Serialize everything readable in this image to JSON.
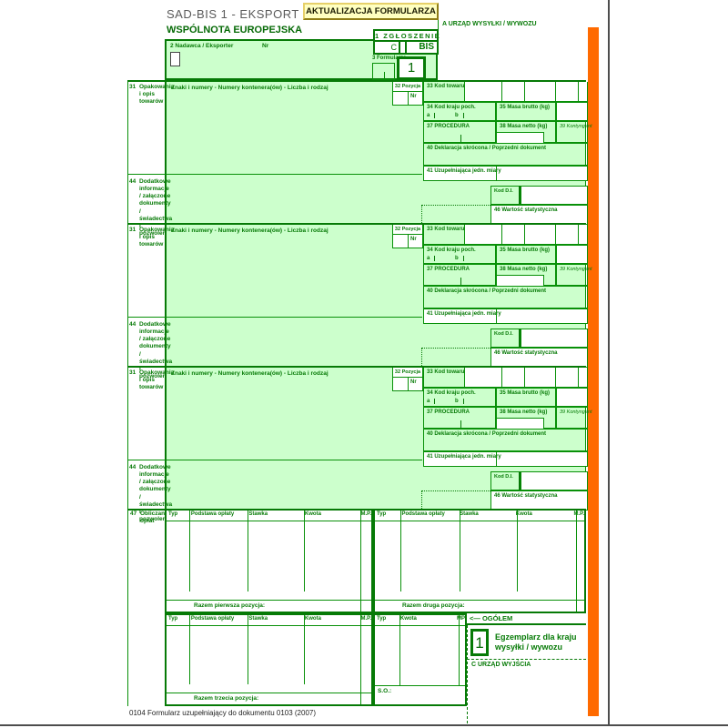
{
  "colors": {
    "accent_orange": "#ff6a00",
    "form_green": "#067a06",
    "fill_green": "#ccffcc",
    "button_bg": "#ffffc0"
  },
  "header": {
    "title": "SAD-BIS 1 - EKSPORT",
    "update_button": "AKTUALIZACJA FORMULARZA",
    "community": "WSPÓLNOTA EUROPEJSKA",
    "office_a": "A  URZĄD WYSYŁKI / WYWOZU",
    "box2_label": "2 Nadawca / Eksporter",
    "box2_nr": "Nr",
    "box1_title": "1 ZGŁOSZENIE",
    "box1_c": "C",
    "box1_bis": "BIS",
    "box3_label": "3 Formularze",
    "box3_value": "1"
  },
  "item_fields": {
    "f31_num": "31",
    "f31_text": "Opakowania i opis towarów",
    "znaki": "Znaki i numery - Numery kontenera(ów) - Liczba i rodzaj",
    "f32_label": "32 Pozycja",
    "f32_nr": "Nr",
    "f33": "33 Kod towaru",
    "f34": "34 Kod kraju poch.",
    "f34_a": "a",
    "f34_b": "b",
    "f35": "35 Masa brutto (kg)",
    "f37": "37 PROCEDURA",
    "f38": "38 Masa netto (kg)",
    "f39": "39 Kontyngent",
    "f40": "40 Deklaracja skrócona / Poprzedni dokument",
    "f41": "41 Uzupełniająca jedn. miary",
    "kod_di": "Kod D.I.",
    "f46": "46 Wartość statystyczna",
    "f44_num": "44",
    "f44_text": "Dodatkowe informacje / załączone dokumenty / świadectwa i pozwolenia"
  },
  "fees": {
    "f47_num": "47",
    "f47_text": "Obliczanie opłat",
    "typ": "Typ",
    "podstawa": "Podstawa opłaty",
    "stawka": "Stawka",
    "kwota": "Kwota",
    "mp": "M.P.",
    "mp2": "MP",
    "razem1": "Razem pierwsza pozycja:",
    "razem2": "Razem druga pozycja:",
    "razem3": "Razem trzecia pozycja:",
    "ogolem": "<—  OGÓŁEM",
    "so": "S.O.:"
  },
  "copy_box": {
    "number": "1",
    "label": "Egzemplarz dla kraju wysyłki / wywozu",
    "office_c": "C  URZĄD WYJŚCIA"
  },
  "footer": {
    "note": "0104 Formularz uzupełniający do dokumentu 0103  (2007)"
  }
}
